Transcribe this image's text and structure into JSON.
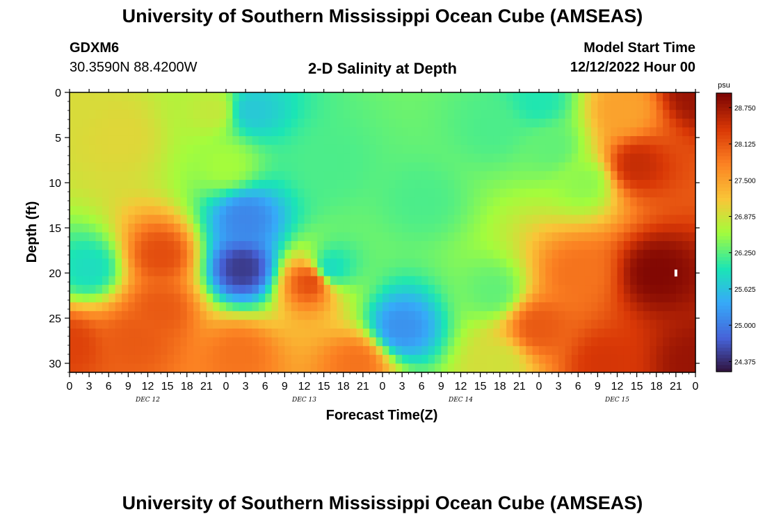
{
  "header": {
    "title": "University of Southern Mississippi Ocean Cube (AMSEAS)",
    "station_id": "GDXM6",
    "station_coords": "30.3590N  88.4200W",
    "plot_title": "2-D Salinity at Depth",
    "model_start_label": "Model Start Time",
    "model_start_value": "12/12/2022 Hour 00"
  },
  "footer": {
    "title": "University of Southern Mississippi Ocean Cube (AMSEAS)"
  },
  "chart_data": {
    "type": "heatmap",
    "title": "2-D Salinity at Depth",
    "xlabel": "Forecast Time(Z)",
    "ylabel": "Depth (ft)",
    "x_range_hours": [
      0,
      96
    ],
    "y_range_ft": [
      0,
      31
    ],
    "x_tick_labels": [
      "0",
      "3",
      "6",
      "9",
      "12",
      "15",
      "18",
      "21",
      "0",
      "3",
      "6",
      "9",
      "12",
      "15",
      "18",
      "21",
      "0",
      "3",
      "6",
      "9",
      "12",
      "15",
      "18",
      "21",
      "0",
      "3",
      "6",
      "9",
      "12",
      "15",
      "18",
      "21",
      "0"
    ],
    "y_ticks": [
      0,
      5,
      10,
      15,
      20,
      25,
      30
    ],
    "y_tick_labels": [
      "0",
      "5",
      "10",
      "15",
      "20",
      "25",
      "30"
    ],
    "day_labels": [
      {
        "label": "DEC 12",
        "hour": 12
      },
      {
        "label": "DEC 13",
        "hour": 36
      },
      {
        "label": "DEC 14",
        "hour": 60
      },
      {
        "label": "DEC 15",
        "hour": 84
      }
    ],
    "colorbar": {
      "units": "psu",
      "range": [
        24.2,
        29.0
      ],
      "tick_values": [
        24.375,
        25.0,
        25.625,
        26.25,
        26.875,
        27.5,
        28.125,
        28.75
      ],
      "tick_labels": [
        "24.375",
        "25.000",
        "25.625",
        "26.250",
        "26.875",
        "27.500",
        "28.125",
        "28.750"
      ]
    },
    "marker": {
      "hour": 93,
      "depth_ft": 20
    },
    "salinity_control_points_psu": [
      {
        "hour": 0,
        "depth": 0,
        "value": 26.95
      },
      {
        "hour": 8,
        "depth": 5,
        "value": 27.0
      },
      {
        "hour": 3,
        "depth": 19.5,
        "value": 25.9
      },
      {
        "hour": 0,
        "depth": 28,
        "value": 28.3
      },
      {
        "hour": 14,
        "depth": 18,
        "value": 28.2
      },
      {
        "hour": 14,
        "depth": 24,
        "value": 28.1
      },
      {
        "hour": 10,
        "depth": 27.5,
        "value": 28.1
      },
      {
        "hour": 22,
        "depth": 2,
        "value": 26.8
      },
      {
        "hour": 24,
        "depth": 8,
        "value": 26.6
      },
      {
        "hour": 26.5,
        "depth": 19.5,
        "value": 24.5
      },
      {
        "hour": 27,
        "depth": 14,
        "value": 25.1
      },
      {
        "hour": 28,
        "depth": 2,
        "value": 25.7
      },
      {
        "hour": 26,
        "depth": 29,
        "value": 27.9
      },
      {
        "hour": 37,
        "depth": 21,
        "value": 28.2
      },
      {
        "hour": 40,
        "depth": 19.5,
        "value": 25.9
      },
      {
        "hour": 40,
        "depth": 8,
        "value": 26.2
      },
      {
        "hour": 44,
        "depth": 30,
        "value": 27.9
      },
      {
        "hour": 51,
        "depth": 26,
        "value": 25.2
      },
      {
        "hour": 54,
        "depth": 12,
        "value": 26.2
      },
      {
        "hour": 65,
        "depth": 22,
        "value": 26.3
      },
      {
        "hour": 66,
        "depth": 30,
        "value": 26.9
      },
      {
        "hour": 65,
        "depth": 4,
        "value": 26.2
      },
      {
        "hour": 72,
        "depth": 1,
        "value": 26.0
      },
      {
        "hour": 74,
        "depth": 6,
        "value": 26.3
      },
      {
        "hour": 79,
        "depth": 10,
        "value": 26.5
      },
      {
        "hour": 72,
        "depth": 26,
        "value": 28.1
      },
      {
        "hour": 85,
        "depth": 2,
        "value": 27.5
      },
      {
        "hour": 87,
        "depth": 8,
        "value": 28.5
      },
      {
        "hour": 90,
        "depth": 20,
        "value": 28.95
      },
      {
        "hour": 96,
        "depth": 0,
        "value": 28.8
      },
      {
        "hour": 96,
        "depth": 30,
        "value": 28.8
      },
      {
        "hour": 82,
        "depth": 30,
        "value": 28.4
      },
      {
        "hour": 78,
        "depth": 20,
        "value": 27.9
      }
    ]
  }
}
